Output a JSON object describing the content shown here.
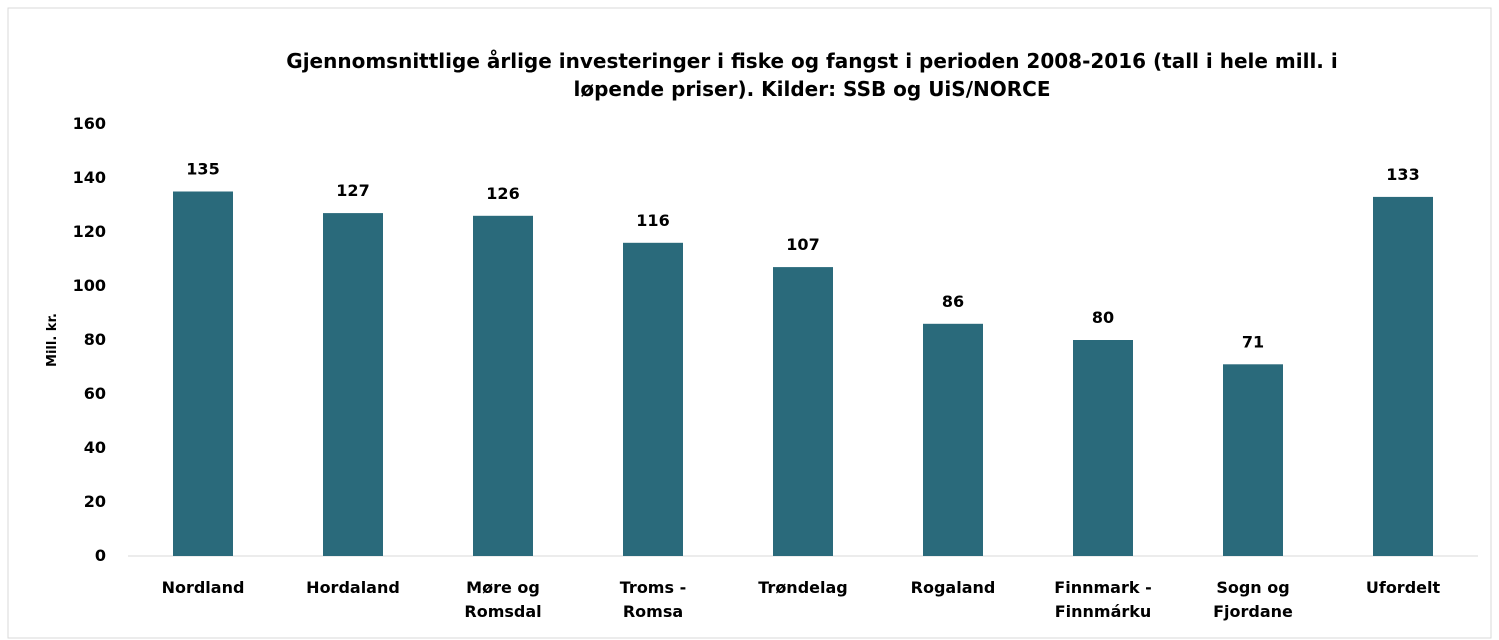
{
  "chart_data": {
    "type": "bar",
    "title": "Gjennomsnittlige årlige investeringer i fiske og fangst i perioden 2008-2016 (tall i hele mill. i\nløpende priser). Kilder: SSB og UiS/NORCE",
    "y_label": "Mill. kr.",
    "categories": [
      "Nordland",
      "Hordaland",
      "Møre og\nRomsdal",
      "Troms -\nRomsa",
      "Trøndelag",
      "Rogaland",
      "Finnmark -\nFinnmárku",
      "Sogn og\nFjordane",
      "Ufordelt"
    ],
    "values": [
      135,
      127,
      126,
      116,
      107,
      86,
      80,
      71,
      133
    ],
    "color": "#2a6a7b",
    "ylim": [
      0,
      160
    ],
    "yticks": [
      0,
      20,
      40,
      60,
      80,
      100,
      120,
      140,
      160
    ],
    "grid": false
  }
}
